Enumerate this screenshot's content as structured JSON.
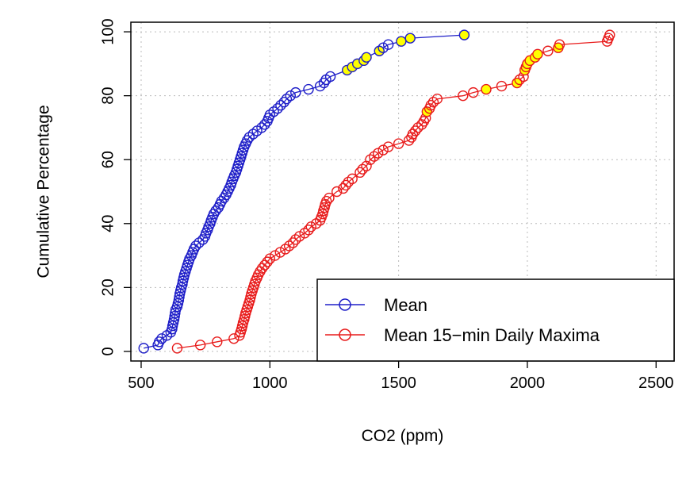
{
  "chart_data": {
    "type": "line",
    "xlabel": "CO2 (ppm)",
    "ylabel": "Cumulative Percentage",
    "xlim": [
      460,
      2570
    ],
    "ylim": [
      -3,
      103
    ],
    "x_ticks": [
      500,
      1000,
      1500,
      2000,
      2500
    ],
    "y_ticks": [
      0,
      20,
      40,
      60,
      80,
      100
    ],
    "grid": true,
    "legend_position": "bottom-right",
    "highlight_color": "#ffff00",
    "series": [
      {
        "name": "Mean",
        "color": "#1f1fc8",
        "marker": "open-circle",
        "points": [
          [
            510,
            1
          ],
          [
            565,
            2
          ],
          [
            570,
            3
          ],
          [
            580,
            4
          ],
          [
            600,
            5
          ],
          [
            615,
            6
          ],
          [
            620,
            7
          ],
          [
            622,
            8
          ],
          [
            625,
            9
          ],
          [
            628,
            10
          ],
          [
            630,
            11
          ],
          [
            632,
            12
          ],
          [
            634,
            13
          ],
          [
            640,
            14
          ],
          [
            643,
            15
          ],
          [
            646,
            16
          ],
          [
            648,
            17
          ],
          [
            650,
            18
          ],
          [
            653,
            19
          ],
          [
            656,
            20
          ],
          [
            660,
            21
          ],
          [
            662,
            22
          ],
          [
            665,
            23
          ],
          [
            668,
            24
          ],
          [
            672,
            25
          ],
          [
            676,
            26
          ],
          [
            680,
            27
          ],
          [
            684,
            28
          ],
          [
            688,
            29
          ],
          [
            695,
            30
          ],
          [
            700,
            31
          ],
          [
            705,
            32
          ],
          [
            712,
            33
          ],
          [
            725,
            34
          ],
          [
            740,
            35
          ],
          [
            748,
            36
          ],
          [
            752,
            37
          ],
          [
            758,
            38
          ],
          [
            762,
            39
          ],
          [
            768,
            40
          ],
          [
            772,
            41
          ],
          [
            777,
            42
          ],
          [
            782,
            43
          ],
          [
            790,
            44
          ],
          [
            800,
            45
          ],
          [
            806,
            46
          ],
          [
            812,
            47
          ],
          [
            822,
            48
          ],
          [
            830,
            49
          ],
          [
            836,
            50
          ],
          [
            842,
            51
          ],
          [
            848,
            52
          ],
          [
            852,
            53
          ],
          [
            857,
            54
          ],
          [
            862,
            55
          ],
          [
            868,
            56
          ],
          [
            872,
            57
          ],
          [
            876,
            58
          ],
          [
            880,
            59
          ],
          [
            884,
            60
          ],
          [
            888,
            61
          ],
          [
            892,
            62
          ],
          [
            896,
            63
          ],
          [
            900,
            64
          ],
          [
            906,
            65
          ],
          [
            912,
            66
          ],
          [
            920,
            67
          ],
          [
            935,
            68
          ],
          [
            950,
            69
          ],
          [
            968,
            70
          ],
          [
            980,
            71
          ],
          [
            990,
            72
          ],
          [
            995,
            73
          ],
          [
            1000,
            74
          ],
          [
            1015,
            75
          ],
          [
            1030,
            76
          ],
          [
            1042,
            77
          ],
          [
            1055,
            78
          ],
          [
            1065,
            79
          ],
          [
            1080,
            80
          ],
          [
            1100,
            81
          ],
          [
            1150,
            82
          ],
          [
            1195,
            83
          ],
          [
            1210,
            84
          ],
          [
            1218,
            85
          ],
          [
            1235,
            86
          ],
          [
            1300,
            88
          ],
          [
            1320,
            89
          ],
          [
            1340,
            90
          ],
          [
            1365,
            91
          ],
          [
            1375,
            92
          ],
          [
            1425,
            94
          ],
          [
            1440,
            95
          ],
          [
            1460,
            96
          ],
          [
            1510,
            97
          ],
          [
            1545,
            98
          ],
          [
            1755,
            99
          ]
        ],
        "highlighted_points": [
          [
            1300,
            88
          ],
          [
            1320,
            89
          ],
          [
            1340,
            90
          ],
          [
            1365,
            91
          ],
          [
            1375,
            92
          ],
          [
            1425,
            94
          ],
          [
            1510,
            97
          ],
          [
            1545,
            98
          ],
          [
            1755,
            99
          ]
        ]
      },
      {
        "name": "Mean 15−min Daily Maxima",
        "color": "#e81c1c",
        "marker": "open-circle",
        "points": [
          [
            640,
            1
          ],
          [
            730,
            2
          ],
          [
            795,
            3
          ],
          [
            860,
            4
          ],
          [
            882,
            5
          ],
          [
            886,
            6
          ],
          [
            890,
            7
          ],
          [
            893,
            8
          ],
          [
            896,
            9
          ],
          [
            900,
            10
          ],
          [
            903,
            11
          ],
          [
            906,
            12
          ],
          [
            910,
            13
          ],
          [
            914,
            14
          ],
          [
            918,
            15
          ],
          [
            922,
            16
          ],
          [
            925,
            17
          ],
          [
            928,
            18
          ],
          [
            932,
            19
          ],
          [
            936,
            20
          ],
          [
            940,
            21
          ],
          [
            944,
            22
          ],
          [
            950,
            23
          ],
          [
            955,
            24
          ],
          [
            962,
            25
          ],
          [
            970,
            26
          ],
          [
            980,
            27
          ],
          [
            990,
            28
          ],
          [
            1000,
            29
          ],
          [
            1020,
            30
          ],
          [
            1040,
            31
          ],
          [
            1060,
            32
          ],
          [
            1075,
            33
          ],
          [
            1090,
            34
          ],
          [
            1100,
            35
          ],
          [
            1115,
            36
          ],
          [
            1135,
            37
          ],
          [
            1150,
            38
          ],
          [
            1160,
            39
          ],
          [
            1180,
            40
          ],
          [
            1195,
            41
          ],
          [
            1200,
            42
          ],
          [
            1205,
            43
          ],
          [
            1208,
            44
          ],
          [
            1212,
            45
          ],
          [
            1215,
            46
          ],
          [
            1220,
            47
          ],
          [
            1230,
            48
          ],
          [
            1260,
            50
          ],
          [
            1285,
            51
          ],
          [
            1295,
            52
          ],
          [
            1305,
            53
          ],
          [
            1320,
            54
          ],
          [
            1350,
            56
          ],
          [
            1360,
            57
          ],
          [
            1375,
            58
          ],
          [
            1390,
            60
          ],
          [
            1405,
            61
          ],
          [
            1420,
            62
          ],
          [
            1440,
            63
          ],
          [
            1460,
            64
          ],
          [
            1500,
            65
          ],
          [
            1540,
            66
          ],
          [
            1550,
            67
          ],
          [
            1555,
            68
          ],
          [
            1565,
            69
          ],
          [
            1575,
            70
          ],
          [
            1590,
            71
          ],
          [
            1598,
            72
          ],
          [
            1605,
            73
          ],
          [
            1610,
            75
          ],
          [
            1620,
            76
          ],
          [
            1625,
            77
          ],
          [
            1635,
            78
          ],
          [
            1650,
            79
          ],
          [
            1750,
            80
          ],
          [
            1790,
            81
          ],
          [
            1840,
            82
          ],
          [
            1900,
            83
          ],
          [
            1960,
            84
          ],
          [
            1970,
            85
          ],
          [
            1985,
            86
          ],
          [
            1990,
            88
          ],
          [
            1995,
            89
          ],
          [
            2000,
            90
          ],
          [
            2010,
            91
          ],
          [
            2030,
            92
          ],
          [
            2040,
            93
          ],
          [
            2080,
            94
          ],
          [
            2120,
            95
          ],
          [
            2125,
            96
          ],
          [
            2310,
            97
          ],
          [
            2315,
            98
          ],
          [
            2320,
            99
          ]
        ],
        "highlighted_points": [
          [
            1610,
            75
          ],
          [
            1840,
            82
          ],
          [
            1960,
            84
          ],
          [
            1990,
            88
          ],
          [
            2000,
            90
          ],
          [
            2010,
            91
          ],
          [
            2030,
            92
          ],
          [
            2040,
            93
          ],
          [
            2120,
            95
          ]
        ]
      }
    ]
  }
}
